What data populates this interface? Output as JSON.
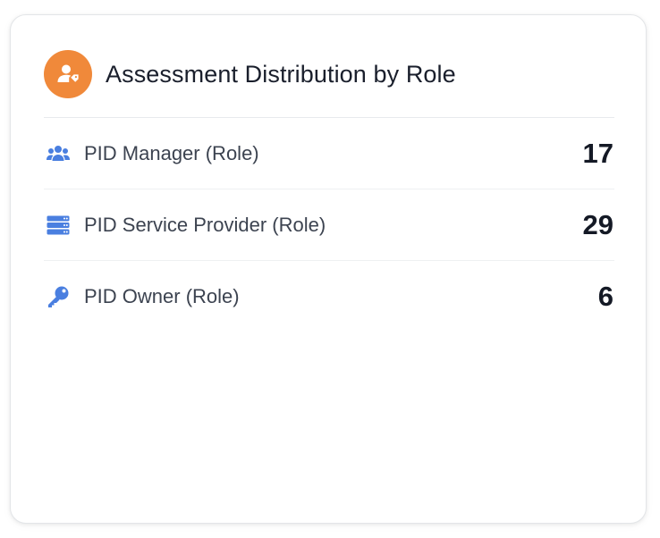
{
  "card": {
    "title": "Assessment Distribution by Role",
    "header_icon": "user-tag-icon",
    "header_icon_bg": "#f0893a",
    "accent_icon_color": "#4a7fe0"
  },
  "roles": [
    {
      "icon": "users-icon",
      "label": "PID Manager (Role)",
      "count": "17"
    },
    {
      "icon": "server-icon",
      "label": "PID Service Provider (Role)",
      "count": "29"
    },
    {
      "icon": "key-icon",
      "label": "PID Owner (Role)",
      "count": "6"
    }
  ]
}
